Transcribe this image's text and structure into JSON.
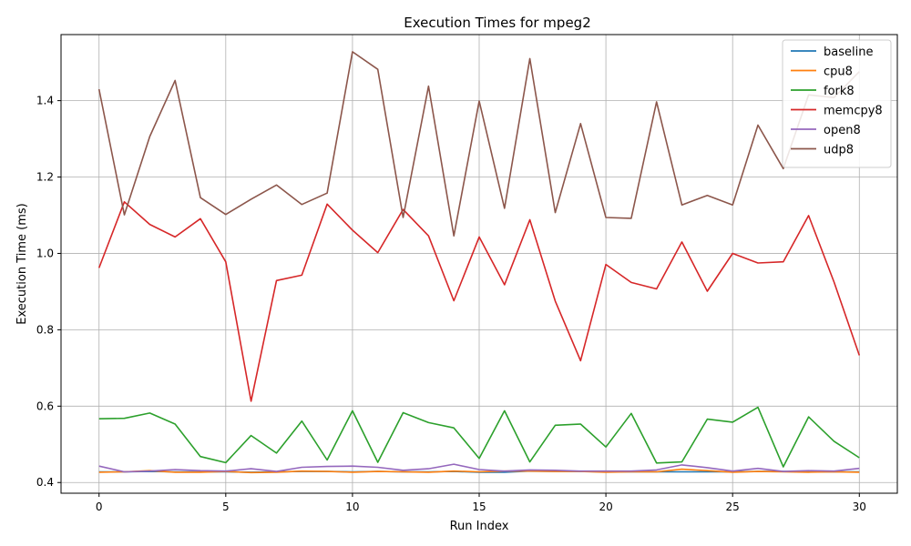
{
  "chart_data": {
    "type": "line",
    "title": "Execution Times for mpeg2",
    "xlabel": "Run Index",
    "ylabel": "Execution Time (ms)",
    "xlim": [
      -1.5,
      31.5
    ],
    "ylim": [
      0.372,
      1.573
    ],
    "xticks": [
      0,
      5,
      10,
      15,
      20,
      25,
      30
    ],
    "yticks": [
      0.4,
      0.6,
      0.8,
      1.0,
      1.2,
      1.4
    ],
    "ytick_labels": [
      "0.4",
      "0.6",
      "0.8",
      "1.0",
      "1.2",
      "1.4"
    ],
    "grid": true,
    "legend_position": "top-right",
    "x": [
      0,
      1,
      2,
      3,
      4,
      5,
      6,
      7,
      8,
      9,
      10,
      11,
      12,
      13,
      14,
      15,
      16,
      17,
      18,
      19,
      20,
      21,
      22,
      23,
      24,
      25,
      26,
      27,
      28,
      29,
      30
    ],
    "series": [
      {
        "name": "baseline",
        "color": "#1f77b4",
        "values": [
          0.428,
          0.428,
          0.429,
          0.428,
          0.428,
          0.428,
          0.427,
          0.428,
          0.429,
          0.429,
          0.428,
          0.429,
          0.428,
          0.428,
          0.429,
          0.427,
          0.427,
          0.43,
          0.429,
          0.429,
          0.428,
          0.428,
          0.428,
          0.428,
          0.428,
          0.428,
          0.429,
          0.429,
          0.428,
          0.428,
          0.428
        ]
      },
      {
        "name": "cpu8",
        "color": "#ff7f0e",
        "values": [
          0.427,
          0.428,
          0.431,
          0.427,
          0.427,
          0.429,
          0.426,
          0.427,
          0.43,
          0.429,
          0.427,
          0.429,
          0.428,
          0.427,
          0.43,
          0.428,
          0.43,
          0.43,
          0.429,
          0.429,
          0.427,
          0.428,
          0.428,
          0.435,
          0.431,
          0.427,
          0.429,
          0.428,
          0.427,
          0.428,
          0.427
        ]
      },
      {
        "name": "fork8",
        "color": "#2ca02c",
        "values": [
          0.567,
          0.568,
          0.582,
          0.553,
          0.468,
          0.452,
          0.523,
          0.477,
          0.561,
          0.459,
          0.588,
          0.453,
          0.583,
          0.557,
          0.543,
          0.463,
          0.588,
          0.454,
          0.55,
          0.553,
          0.493,
          0.581,
          0.451,
          0.454,
          0.566,
          0.558,
          0.597,
          0.441,
          0.572,
          0.508,
          0.465
        ]
      },
      {
        "name": "memcpy8",
        "color": "#d62728",
        "values": [
          0.962,
          1.135,
          1.076,
          1.043,
          1.091,
          0.978,
          0.613,
          0.929,
          0.943,
          1.129,
          1.061,
          1.002,
          1.115,
          1.046,
          0.876,
          1.043,
          0.918,
          1.088,
          0.875,
          0.719,
          0.971,
          0.924,
          0.907,
          1.03,
          0.901,
          1.0,
          0.975,
          0.978,
          1.099,
          0.925,
          0.733
        ]
      },
      {
        "name": "open8",
        "color": "#9467bd",
        "values": [
          0.443,
          0.428,
          0.43,
          0.434,
          0.431,
          0.43,
          0.436,
          0.429,
          0.44,
          0.442,
          0.443,
          0.44,
          0.432,
          0.436,
          0.448,
          0.434,
          0.43,
          0.433,
          0.432,
          0.43,
          0.43,
          0.43,
          0.433,
          0.446,
          0.439,
          0.43,
          0.437,
          0.429,
          0.431,
          0.43,
          0.437
        ]
      },
      {
        "name": "udp8",
        "color": "#8c564b",
        "values": [
          1.43,
          1.101,
          1.306,
          1.453,
          1.146,
          1.102,
          1.142,
          1.179,
          1.128,
          1.158,
          1.528,
          1.482,
          1.094,
          1.438,
          1.046,
          1.399,
          1.118,
          1.51,
          1.107,
          1.34,
          1.094,
          1.092,
          1.397,
          1.127,
          1.152,
          1.127,
          1.336,
          1.222,
          1.415,
          1.408,
          1.476
        ]
      }
    ]
  }
}
